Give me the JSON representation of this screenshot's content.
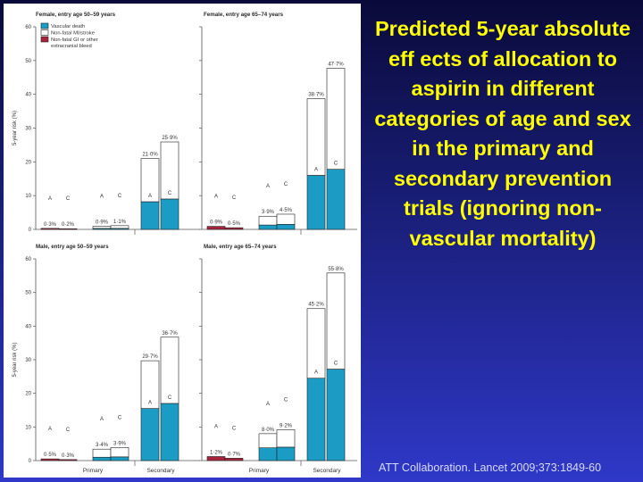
{
  "slide": {
    "title": "Predicted 5-year absolute eff ects of allocation to aspirin in different categories of age and sex in the primary and secondary prevention trials (ignoring non-vascular mortality)",
    "citation": "ATT Collaboration. Lancet 2009;373:1849-60"
  },
  "colors": {
    "vascular_death": "#1a9cc4",
    "nonfatal_mi_stroke": "#ffffff",
    "nonfatal_bleed": "#a8243c",
    "axis": "#555555"
  },
  "chart_data": {
    "type": "bar",
    "stacked": true,
    "ylabel": "5-year risk (%)",
    "ylim": [
      0,
      60
    ],
    "yticks": [
      0,
      10,
      20,
      30,
      40,
      50,
      60
    ],
    "groups": [
      "Primary",
      "Secondary"
    ],
    "bar_labels": [
      "A",
      "C"
    ],
    "legend": {
      "placement": "top-left",
      "entries": [
        {
          "key": "vascular_death",
          "label": "Vascular death"
        },
        {
          "key": "nonfatal_mi_stroke",
          "label": "Non-fatal MI/stroke"
        },
        {
          "key": "nonfatal_bleed",
          "label": "Non-fatal GI or other extracranial bleed"
        }
      ]
    },
    "panels": [
      {
        "title": "Female, entry age 50–59 years",
        "bars": [
          {
            "group": "Primary",
            "arm": "A",
            "total_label": "0·3%",
            "bleed": 0.3,
            "vascular_death": 0,
            "nonfatal_mi_stroke": 0
          },
          {
            "group": "Primary",
            "arm": "C",
            "total_label": "0·2%",
            "bleed": 0.2,
            "vascular_death": 0,
            "nonfatal_mi_stroke": 0
          },
          {
            "group": "Primary",
            "arm": "A",
            "total_label": "0·9%",
            "bleed": 0,
            "vascular_death": 0.3,
            "nonfatal_mi_stroke": 0.6
          },
          {
            "group": "Primary",
            "arm": "C",
            "total_label": "1·1%",
            "bleed": 0,
            "vascular_death": 0.3,
            "nonfatal_mi_stroke": 0.8
          },
          {
            "group": "Secondary",
            "arm": "A",
            "total_label": "21·0%",
            "bleed": 0,
            "vascular_death": 8.2,
            "nonfatal_mi_stroke": 12.8
          },
          {
            "group": "Secondary",
            "arm": "C",
            "total_label": "25·9%",
            "bleed": 0,
            "vascular_death": 9.0,
            "nonfatal_mi_stroke": 16.9
          }
        ]
      },
      {
        "title": "Female, entry age 65–74 years",
        "bars": [
          {
            "group": "Primary",
            "arm": "A",
            "total_label": "0·9%",
            "bleed": 0.9,
            "vascular_death": 0,
            "nonfatal_mi_stroke": 0
          },
          {
            "group": "Primary",
            "arm": "C",
            "total_label": "0·5%",
            "bleed": 0.5,
            "vascular_death": 0,
            "nonfatal_mi_stroke": 0
          },
          {
            "group": "Primary",
            "arm": "A",
            "total_label": "3·9%",
            "bleed": 0,
            "vascular_death": 1.3,
            "nonfatal_mi_stroke": 2.6
          },
          {
            "group": "Primary",
            "arm": "C",
            "total_label": "4·5%",
            "bleed": 0,
            "vascular_death": 1.5,
            "nonfatal_mi_stroke": 3.0
          },
          {
            "group": "Secondary",
            "arm": "A",
            "total_label": "38·7%",
            "bleed": 0,
            "vascular_death": 16.0,
            "nonfatal_mi_stroke": 22.7
          },
          {
            "group": "Secondary",
            "arm": "C",
            "total_label": "47·7%",
            "bleed": 0,
            "vascular_death": 17.8,
            "nonfatal_mi_stroke": 29.9
          }
        ]
      },
      {
        "title": "Male, entry age 50–59 years",
        "bars": [
          {
            "group": "Primary",
            "arm": "A",
            "total_label": "0·5%",
            "bleed": 0.5,
            "vascular_death": 0,
            "nonfatal_mi_stroke": 0
          },
          {
            "group": "Primary",
            "arm": "C",
            "total_label": "0·3%",
            "bleed": 0.3,
            "vascular_death": 0,
            "nonfatal_mi_stroke": 0
          },
          {
            "group": "Primary",
            "arm": "A",
            "total_label": "3·4%",
            "bleed": 0,
            "vascular_death": 1.0,
            "nonfatal_mi_stroke": 2.4
          },
          {
            "group": "Primary",
            "arm": "C",
            "total_label": "3·9%",
            "bleed": 0,
            "vascular_death": 1.1,
            "nonfatal_mi_stroke": 2.8
          },
          {
            "group": "Secondary",
            "arm": "A",
            "total_label": "29·7%",
            "bleed": 0,
            "vascular_death": 15.5,
            "nonfatal_mi_stroke": 14.2
          },
          {
            "group": "Secondary",
            "arm": "C",
            "total_label": "36·7%",
            "bleed": 0,
            "vascular_death": 17.0,
            "nonfatal_mi_stroke": 19.7
          }
        ]
      },
      {
        "title": "Male, entry age 65–74 years",
        "bars": [
          {
            "group": "Primary",
            "arm": "A",
            "total_label": "1·2%",
            "bleed": 1.2,
            "vascular_death": 0,
            "nonfatal_mi_stroke": 0
          },
          {
            "group": "Primary",
            "arm": "C",
            "total_label": "0·7%",
            "bleed": 0.7,
            "vascular_death": 0,
            "nonfatal_mi_stroke": 0
          },
          {
            "group": "Primary",
            "arm": "A",
            "total_label": "8·0%",
            "bleed": 0,
            "vascular_death": 3.8,
            "nonfatal_mi_stroke": 4.2
          },
          {
            "group": "Primary",
            "arm": "C",
            "total_label": "9·2%",
            "bleed": 0,
            "vascular_death": 4.0,
            "nonfatal_mi_stroke": 5.2
          },
          {
            "group": "Secondary",
            "arm": "A",
            "total_label": "45·2%",
            "bleed": 0,
            "vascular_death": 24.5,
            "nonfatal_mi_stroke": 20.7
          },
          {
            "group": "Secondary",
            "arm": "C",
            "total_label": "55·8%",
            "bleed": 0,
            "vascular_death": 27.2,
            "nonfatal_mi_stroke": 28.6
          }
        ]
      }
    ]
  }
}
